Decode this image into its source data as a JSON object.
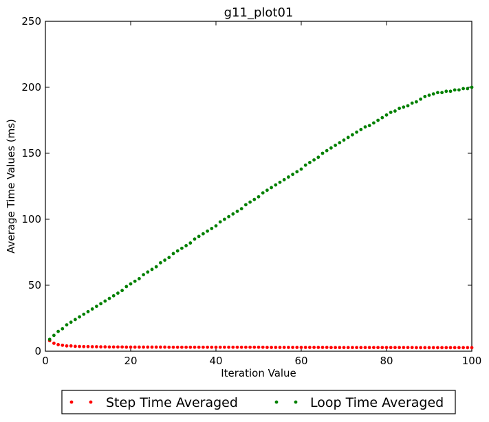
{
  "chart_data": {
    "type": "scatter",
    "title": "g11_plot01",
    "xlabel": "Iteration Value",
    "ylabel": "Average Time Values (ms)",
    "xlim": [
      0,
      100
    ],
    "ylim": [
      0,
      250
    ],
    "xticks": [
      0,
      20,
      40,
      60,
      80,
      100
    ],
    "yticks": [
      0,
      50,
      100,
      150,
      200,
      250
    ],
    "grid": false,
    "legend_position": "bottom-center",
    "x": [
      1,
      2,
      3,
      4,
      5,
      6,
      7,
      8,
      9,
      10,
      11,
      12,
      13,
      14,
      15,
      16,
      17,
      18,
      19,
      20,
      21,
      22,
      23,
      24,
      25,
      26,
      27,
      28,
      29,
      30,
      31,
      32,
      33,
      34,
      35,
      36,
      37,
      38,
      39,
      40,
      41,
      42,
      43,
      44,
      45,
      46,
      47,
      48,
      49,
      50,
      51,
      52,
      53,
      54,
      55,
      56,
      57,
      58,
      59,
      60,
      61,
      62,
      63,
      64,
      65,
      66,
      67,
      68,
      69,
      70,
      71,
      72,
      73,
      74,
      75,
      76,
      77,
      78,
      79,
      80,
      81,
      82,
      83,
      84,
      85,
      86,
      87,
      88,
      89,
      90,
      91,
      92,
      93,
      94,
      95,
      96,
      97,
      98,
      99,
      100
    ],
    "series": [
      {
        "name": "Step Time Averaged",
        "color": "#ff0000",
        "values": [
          8,
          6,
          5,
          4.5,
          4,
          4,
          3.7,
          3.6,
          3.5,
          3.5,
          3.4,
          3.4,
          3.3,
          3.3,
          3.2,
          3.2,
          3.2,
          3.2,
          3.1,
          3.1,
          3.1,
          3.1,
          3.1,
          3.1,
          3.1,
          3.1,
          3.1,
          3.1,
          3,
          3,
          3,
          3,
          3,
          3,
          3,
          3,
          3,
          3,
          3,
          3,
          3,
          3,
          3,
          3,
          3,
          3,
          3,
          3,
          3,
          3,
          3,
          2.9,
          2.9,
          2.9,
          2.9,
          2.9,
          2.9,
          2.9,
          2.9,
          2.9,
          2.9,
          2.9,
          2.9,
          2.9,
          2.9,
          2.9,
          2.8,
          2.8,
          2.8,
          2.8,
          2.8,
          2.8,
          2.8,
          2.8,
          2.8,
          2.8,
          2.8,
          2.8,
          2.8,
          2.8,
          2.8,
          2.8,
          2.8,
          2.8,
          2.8,
          2.8,
          2.7,
          2.7,
          2.7,
          2.7,
          2.7,
          2.7,
          2.7,
          2.7,
          2.7,
          2.7,
          2.7,
          2.7,
          2.7,
          2.7
        ]
      },
      {
        "name": "Loop Time Averaged",
        "color": "#008000",
        "values": [
          9,
          12,
          15,
          17,
          20,
          22,
          24,
          26,
          28,
          30,
          32,
          34,
          36,
          38,
          40,
          42,
          44,
          46,
          49,
          51,
          53,
          55,
          58,
          60,
          62,
          64,
          67,
          69,
          71,
          74,
          76,
          78,
          80,
          82,
          85,
          87,
          89,
          91,
          93,
          95,
          98,
          100,
          102,
          104,
          106,
          108,
          111,
          113,
          115,
          117,
          120,
          122,
          124,
          126,
          128,
          130,
          132,
          134,
          136,
          138,
          141,
          143,
          145,
          147,
          150,
          152,
          154,
          156,
          158,
          160,
          162,
          164,
          166,
          168,
          170,
          171,
          173,
          175,
          177,
          179,
          181,
          182,
          184,
          185,
          186,
          188,
          189,
          191,
          193,
          194,
          195,
          196,
          196,
          197,
          197,
          198,
          198,
          199,
          199,
          200
        ]
      }
    ]
  }
}
